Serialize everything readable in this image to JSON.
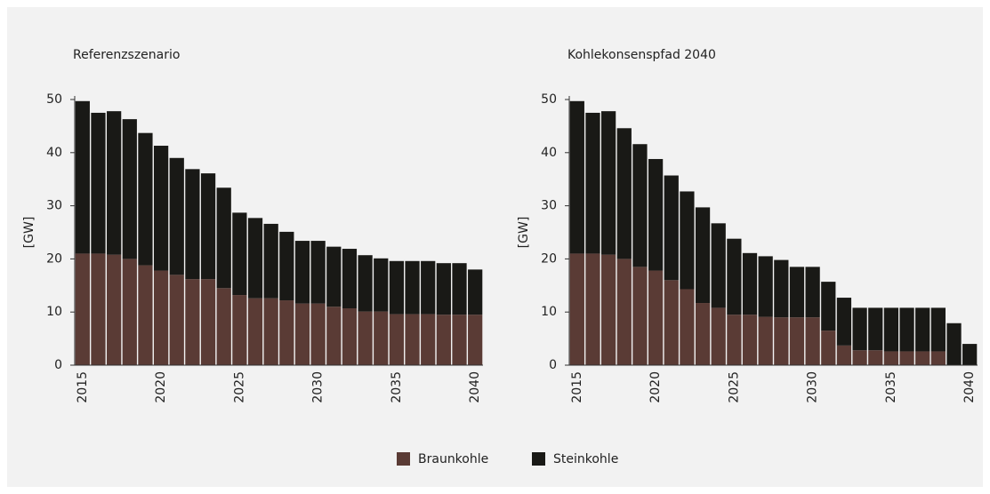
{
  "chart_data": [
    {
      "type": "bar",
      "stacked": true,
      "title": "Referenzszenario",
      "y_label": "[GW]",
      "categories": [
        "2015",
        null,
        null,
        null,
        null,
        "2020",
        null,
        null,
        null,
        null,
        "2025",
        null,
        null,
        null,
        null,
        "2030",
        null,
        null,
        null,
        null,
        "2035",
        null,
        null,
        null,
        null,
        "2040"
      ],
      "series": [
        {
          "name": "Braunkohle",
          "color": "#5a3b35",
          "values": [
            21,
            21,
            20.8,
            20,
            18.8,
            17.8,
            17,
            16.2,
            16.2,
            14.5,
            13.2,
            12.6,
            12.6,
            12.2,
            11.6,
            11.6,
            11,
            10.7,
            10.1,
            10.1,
            9.6,
            9.6,
            9.6,
            9.5,
            9.5,
            9.5
          ]
        },
        {
          "name": "Steinkohle",
          "color": "#191916",
          "values": [
            28.7,
            26.5,
            27,
            26.3,
            24.9,
            23.5,
            22,
            20.7,
            19.9,
            18.9,
            15.5,
            15.1,
            14,
            12.9,
            11.8,
            11.8,
            11.3,
            11.2,
            10.6,
            10,
            10,
            10,
            10,
            9.7,
            9.7,
            8.5
          ]
        }
      ],
      "ylim": [
        0,
        50
      ],
      "yticks": [
        0,
        10,
        20,
        30,
        40,
        50
      ]
    },
    {
      "type": "bar",
      "stacked": true,
      "title": "Kohlekonsenspfad 2040",
      "y_label": "[GW]",
      "categories": [
        "2015",
        null,
        null,
        null,
        null,
        "2020",
        null,
        null,
        null,
        null,
        "2025",
        null,
        null,
        null,
        null,
        "2030",
        null,
        null,
        null,
        null,
        "2035",
        null,
        null,
        null,
        null,
        "2040"
      ],
      "series": [
        {
          "name": "Braunkohle",
          "color": "#5a3b35",
          "values": [
            21,
            21,
            20.8,
            20,
            18.5,
            17.8,
            16,
            14.3,
            11.7,
            10.8,
            9.5,
            9.5,
            9.1,
            9,
            9,
            9,
            6.5,
            3.7,
            2.8,
            2.8,
            2.6,
            2.6,
            2.6,
            2.6,
            0,
            0
          ]
        },
        {
          "name": "Steinkohle",
          "color": "#191916",
          "values": [
            28.7,
            26.5,
            27,
            24.6,
            23.1,
            21,
            19.7,
            18.4,
            18,
            15.9,
            14.3,
            11.6,
            11.4,
            10.8,
            9.5,
            9.5,
            9.2,
            9,
            8,
            8,
            8.2,
            8.2,
            8.2,
            8.2,
            7.9,
            4
          ]
        }
      ],
      "ylim": [
        0,
        50
      ],
      "yticks": [
        0,
        10,
        20,
        30,
        40,
        50
      ]
    }
  ]
}
